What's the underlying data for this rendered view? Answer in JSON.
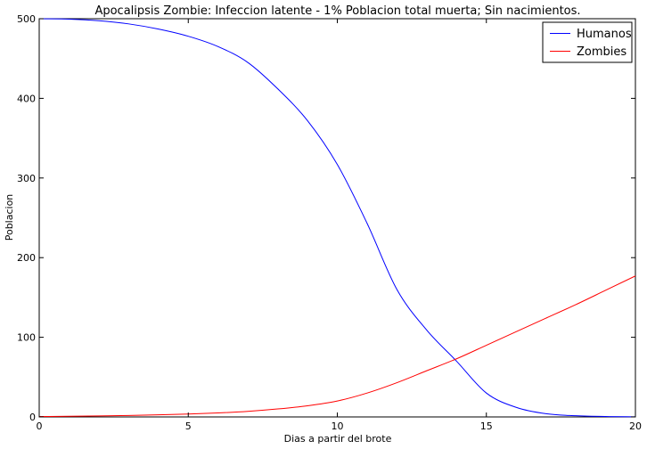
{
  "chart_data": {
    "type": "line",
    "title": "Apocalipsis Zombie: Infeccion latente - 1% Poblacion total muerta; Sin nacimientos.",
    "xlabel": "Dias a partir del brote",
    "ylabel": "Poblacion",
    "xlim": [
      0,
      20
    ],
    "ylim": [
      0,
      500
    ],
    "xticks": [
      0,
      5,
      10,
      15,
      20
    ],
    "yticks": [
      0,
      100,
      200,
      300,
      400,
      500
    ],
    "grid": false,
    "legend_position": "top-right",
    "x": [
      0,
      1,
      2,
      3,
      4,
      5,
      6,
      7,
      8,
      9,
      10,
      11,
      12,
      13,
      14,
      15,
      16,
      17,
      18,
      19,
      20
    ],
    "series": [
      {
        "name": "Humanos",
        "color": "#0000ff",
        "values": [
          500,
          499.5,
          497.5,
          493.5,
          487,
          478,
          465,
          445,
          412,
          372,
          317,
          243,
          160,
          109,
          70,
          30,
          12,
          4,
          1.5,
          0.5,
          0.2
        ]
      },
      {
        "name": "Zombies",
        "color": "#ff0000",
        "values": [
          0.5,
          0.8,
          1.2,
          1.8,
          2.6,
          3.6,
          5,
          7,
          10,
          14,
          20,
          30,
          43,
          58,
          73,
          90,
          107,
          124,
          141,
          159,
          177
        ]
      }
    ]
  }
}
